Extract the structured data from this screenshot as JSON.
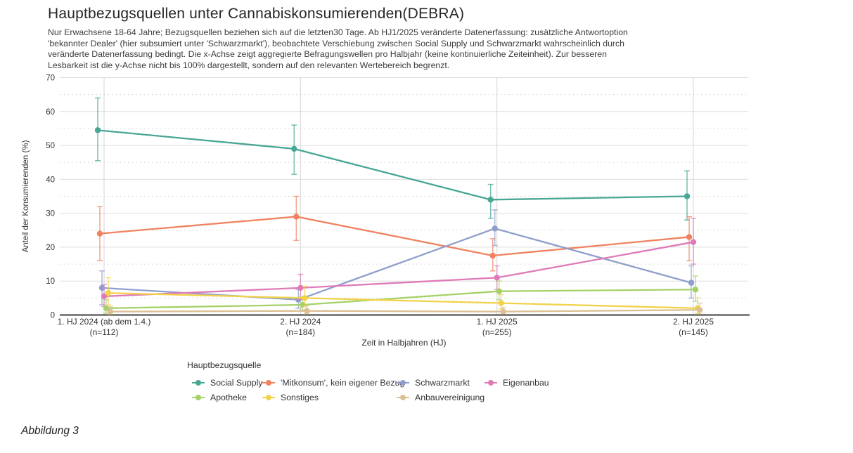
{
  "header": {
    "title": "Hauptbezugsquellen unter Cannabiskonsumierenden(DEBRA)",
    "subtitle_lines": [
      "Nur Erwachsene 18-64 Jahre; Bezugsquellen beziehen sich auf die letzten30 Tage. Ab HJ1/2025 veränderte Datenerfassung: zusätzliche Antwortoption",
      "'bekannter Dealer' (hier subsumiert unter 'Schwarzmarkt'), beobachtete Verschiebung zwischen Social Supply und Schwarzmarkt wahrscheinlich durch",
      "veränderte Datenerfassung bedingt. Die x-Achse zeigt aggregierte Befragungswellen pro Halbjahr (keine kontinuierliche Zeiteinheit). Zur besseren",
      "Lesbarkeit ist die y-Achse nicht bis 100% dargestellt, sondern auf den relevanten Wertebereich begrenzt."
    ]
  },
  "chart_data": {
    "type": "line",
    "title": "Hauptbezugsquellen unter Cannabiskonsumierenden(DEBRA)",
    "xlabel": "Zeit in Halbjahren (HJ)",
    "ylabel": "Anteil der Konsumierenden (%)",
    "ylim": [
      0,
      70
    ],
    "grid": true,
    "legend_position": "bottom",
    "legend_title": "Hauptbezugsquelle",
    "y_major_ticks": [
      0,
      10,
      20,
      30,
      40,
      50,
      60,
      70
    ],
    "y_minor_ticks": [
      5,
      15,
      25,
      35,
      45,
      55,
      65
    ],
    "categories": [
      "1. HJ 2024 (ab dem 1.4.)",
      "2. HJ 2024",
      "1. HJ 2025",
      "2. HJ 2025"
    ],
    "category_counts": [
      "(n=112)",
      "(n=184)",
      "(n=255)",
      "(n=145)"
    ],
    "series": [
      {
        "name": "Social Supply",
        "color": "#47a694",
        "values": [
          54.5,
          49,
          34,
          35
        ],
        "ci_low": [
          45.5,
          41.5,
          28.5,
          28
        ],
        "ci_high": [
          64,
          56,
          38.5,
          42.5
        ]
      },
      {
        "name": "'Mitkonsum', kein eigener Bezug",
        "color": "#f0825f",
        "values": [
          24,
          29,
          17.5,
          23
        ],
        "ci_low": [
          16,
          22,
          13,
          16
        ],
        "ci_high": [
          32,
          35,
          22.5,
          29
        ]
      },
      {
        "name": "Schwarzmarkt",
        "color": "#8f9fcb",
        "values": [
          8,
          4.5,
          25.5,
          9.5
        ],
        "ci_low": [
          3,
          2,
          20.5,
          5
        ],
        "ci_high": [
          13,
          7.5,
          31,
          14.5
        ]
      },
      {
        "name": "Eigenanbau",
        "color": "#df7ab9",
        "values": [
          5.5,
          8,
          11,
          21.5
        ],
        "ci_low": [
          2.5,
          4.5,
          7.5,
          15
        ],
        "ci_high": [
          9,
          12,
          14.5,
          28.5
        ]
      },
      {
        "name": "Apotheke",
        "color": "#a5d168",
        "values": [
          2,
          3,
          7,
          7.5
        ],
        "ci_low": [
          0.5,
          1.5,
          4.5,
          4
        ],
        "ci_high": [
          4.5,
          5.5,
          10,
          11.5
        ]
      },
      {
        "name": "Sonstiges",
        "color": "#f2d24b",
        "values": [
          6.5,
          5,
          3.5,
          2
        ],
        "ci_low": [
          3,
          2.5,
          1.8,
          0.5
        ],
        "ci_high": [
          11,
          8.5,
          6,
          5
        ]
      },
      {
        "name": "Anbauvereinigung",
        "color": "#dcc095",
        "values": [
          1,
          1.2,
          1,
          1.5
        ],
        "ci_low": [
          0.2,
          0.3,
          0.3,
          0.3
        ],
        "ci_high": [
          2.5,
          2.8,
          2.2,
          3.5
        ]
      }
    ]
  },
  "caption": "Abbildung 3"
}
